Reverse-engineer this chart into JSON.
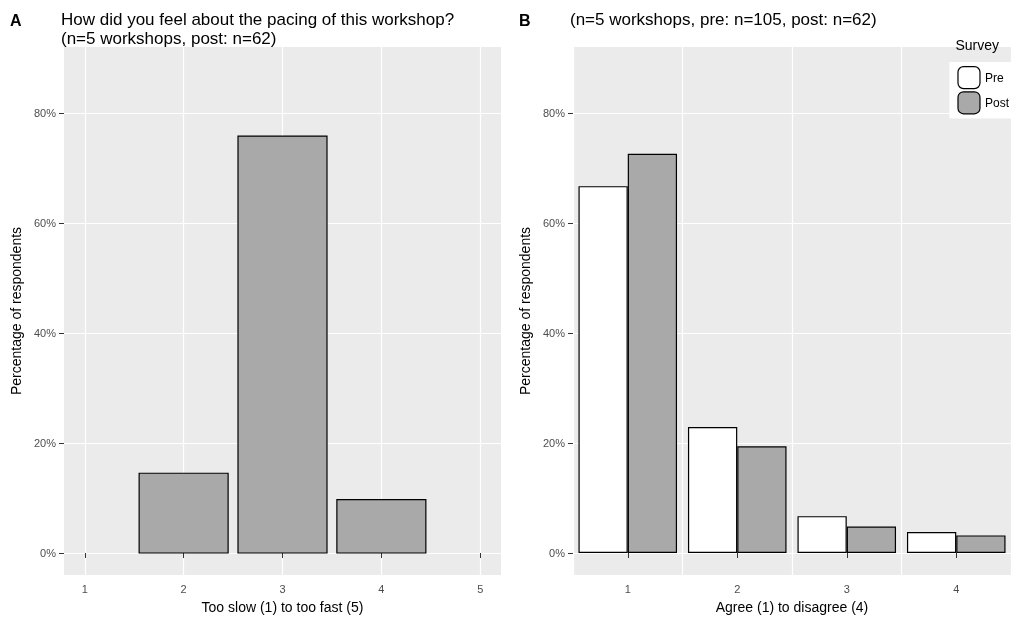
{
  "chart_data": [
    {
      "type": "bar",
      "title": "How did you feel about the pacing of this workshop?",
      "subtitle": "(n=5 workshops, post: n=62)",
      "annotations": [
        "A"
      ],
      "xlabel": "Too slow (1) to too fast (5)",
      "ylabel": "Percentage of respondents",
      "x": [
        2,
        3,
        4
      ],
      "xlim": [
        0.79,
        5.21
      ],
      "xticks": [
        1,
        2,
        3,
        4,
        5
      ],
      "series": [
        {
          "color": "#a9a9a9",
          "values": [
            14.5,
            75.8,
            9.7
          ]
        }
      ],
      "ylim": [
        -4,
        92
      ],
      "yticks": [
        {
          "value": 0,
          "label": "0%"
        },
        {
          "value": 20,
          "label": "20%"
        },
        {
          "value": 40,
          "label": "40%"
        },
        {
          "value": 60,
          "label": "60%"
        },
        {
          "value": 80,
          "label": "80%"
        }
      ],
      "grid": true,
      "legend": false
    },
    {
      "type": "bar",
      "title": "(n=5 workshops, pre: n=105, post: n=62)",
      "annotations": [
        "B"
      ],
      "xlabel": "Agree (1) to disagree (4)",
      "ylabel": "Percentage of respondents",
      "categories": [
        "1",
        "2",
        "3",
        "4"
      ],
      "legend_title": "Survey",
      "series": [
        {
          "name": "Pre",
          "color": "#ffffff",
          "values": [
            66.7,
            22.9,
            6.7,
            3.8
          ]
        },
        {
          "name": "Post",
          "color": "#a9a9a9",
          "values": [
            72.6,
            19.4,
            4.8,
            3.2
          ]
        }
      ],
      "ylim": [
        -4,
        92
      ],
      "yticks": [
        {
          "value": 0,
          "label": "0%"
        },
        {
          "value": 20,
          "label": "20%"
        },
        {
          "value": 40,
          "label": "40%"
        },
        {
          "value": 60,
          "label": "60%"
        },
        {
          "value": 80,
          "label": "80%"
        }
      ],
      "grid": true,
      "legend": "top right"
    }
  ]
}
